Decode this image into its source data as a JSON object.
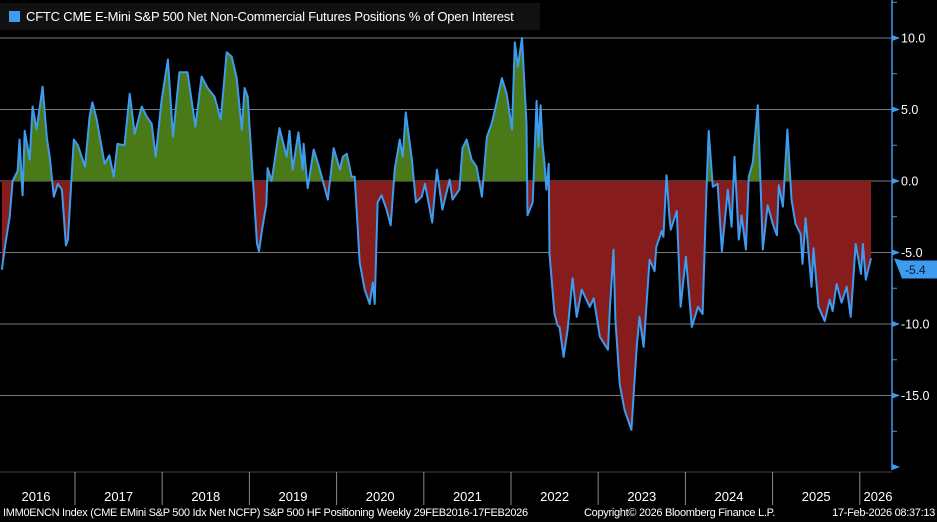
{
  "chart_data": {
    "type": "area",
    "title": "CFTC CME E-Mini S&P 500 Net Non-Commercial Futures Positions % of Open Interest",
    "series": [
      {
        "name": "CFTC CME E-Mini S&P 500 Net Non-Commercial Futures Positions % of Open Interest",
        "color": "#3d9bf0",
        "points": [
          [
            "2016-02-29",
            -6.2
          ],
          [
            "2016-03-11",
            -4.8
          ],
          [
            "2016-04-02",
            -2.5
          ],
          [
            "2016-04-14",
            0
          ],
          [
            "2016-05-05",
            0.7
          ],
          [
            "2016-05-13",
            2.9
          ],
          [
            "2016-05-26",
            -1
          ],
          [
            "2016-06-04",
            3.5
          ],
          [
            "2016-06-25",
            1.5
          ],
          [
            "2016-07-07",
            5.2
          ],
          [
            "2016-07-24",
            3.6
          ],
          [
            "2016-08-18",
            6.6
          ],
          [
            "2016-09-05",
            3.0
          ],
          [
            "2016-09-17",
            1.7
          ],
          [
            "2016-10-04",
            -1.1
          ],
          [
            "2016-10-21",
            -0.2
          ],
          [
            "2016-11-07",
            -0.6
          ],
          [
            "2016-11-24",
            -4.5
          ],
          [
            "2016-12-02",
            -4.1
          ],
          [
            "2016-12-27",
            2.9
          ],
          [
            "2017-01-13",
            2.5
          ],
          [
            "2017-02-12",
            1.0
          ],
          [
            "2017-03-03",
            4.5
          ],
          [
            "2017-03-15",
            5.5
          ],
          [
            "2017-04-02",
            4.3
          ],
          [
            "2017-05-05",
            1.2
          ],
          [
            "2017-05-25",
            1.8
          ],
          [
            "2017-06-12",
            0.3
          ],
          [
            "2017-06-28",
            2.6
          ],
          [
            "2017-07-27",
            2.5
          ],
          [
            "2017-08-18",
            6.1
          ],
          [
            "2017-09-08",
            3.3
          ],
          [
            "2017-10-07",
            5.2
          ],
          [
            "2017-10-28",
            4.5
          ],
          [
            "2017-11-18",
            4.0
          ],
          [
            "2017-12-05",
            1.7
          ],
          [
            "2017-12-29",
            5.6
          ],
          [
            "2018-01-25",
            8.5
          ],
          [
            "2018-02-15",
            3.1
          ],
          [
            "2018-03-14",
            7.6
          ],
          [
            "2018-04-17",
            7.6
          ],
          [
            "2018-05-20",
            3.8
          ],
          [
            "2018-06-15",
            7.3
          ],
          [
            "2018-07-10",
            6.5
          ],
          [
            "2018-08-08",
            5.9
          ],
          [
            "2018-09-03",
            4.3
          ],
          [
            "2018-09-28",
            9.0
          ],
          [
            "2018-10-19",
            8.7
          ],
          [
            "2018-11-09",
            7.2
          ],
          [
            "2018-11-30",
            3.6
          ],
          [
            "2018-12-12",
            6.5
          ],
          [
            "2018-12-25",
            5.9
          ],
          [
            "2019-01-16",
            0
          ],
          [
            "2019-02-02",
            -4.4
          ],
          [
            "2019-02-10",
            -4.9
          ],
          [
            "2019-02-23",
            -3.4
          ],
          [
            "2019-03-13",
            -1.6
          ],
          [
            "2019-03-18",
            0.9
          ],
          [
            "2019-04-04",
            0
          ],
          [
            "2019-05-07",
            3.7
          ],
          [
            "2019-06-06",
            1.7
          ],
          [
            "2019-06-18",
            3.5
          ],
          [
            "2019-07-01",
            0.8
          ],
          [
            "2019-07-25",
            3.4
          ],
          [
            "2019-08-12",
            0.8
          ],
          [
            "2019-08-16",
            2.6
          ],
          [
            "2019-09-02",
            -0.5
          ],
          [
            "2019-09-27",
            2.2
          ],
          [
            "2019-10-14",
            1.3
          ],
          [
            "2019-10-31",
            0.3
          ],
          [
            "2019-11-25",
            -1.3
          ],
          [
            "2019-12-20",
            2.3
          ],
          [
            "2020-01-15",
            0.8
          ],
          [
            "2020-01-27",
            1.7
          ],
          [
            "2020-02-13",
            1.9
          ],
          [
            "2020-03-04",
            0.3
          ],
          [
            "2020-03-17",
            0.3
          ],
          [
            "2020-04-07",
            -5.7
          ],
          [
            "2020-04-28",
            -7.6
          ],
          [
            "2020-05-19",
            -8.6
          ],
          [
            "2020-06-01",
            -7.1
          ],
          [
            "2020-06-09",
            -8.6
          ],
          [
            "2020-06-21",
            -1.5
          ],
          [
            "2020-07-08",
            -1.0
          ],
          [
            "2020-07-29",
            -2.0
          ],
          [
            "2020-08-15",
            -3.1
          ],
          [
            "2020-09-01",
            0.8
          ],
          [
            "2020-09-22",
            2.9
          ],
          [
            "2020-10-05",
            1.7
          ],
          [
            "2020-10-17",
            4.8
          ],
          [
            "2020-11-12",
            1.5
          ],
          [
            "2020-11-29",
            -1.5
          ],
          [
            "2020-12-23",
            -1.1
          ],
          [
            "2021-01-06",
            -0.2
          ],
          [
            "2021-02-05",
            -2.9
          ],
          [
            "2021-02-25",
            0.8
          ],
          [
            "2021-03-20",
            -2.0
          ],
          [
            "2021-04-19",
            0.1
          ],
          [
            "2021-05-01",
            -1.3
          ],
          [
            "2021-05-30",
            -0.6
          ],
          [
            "2021-06-12",
            2.3
          ],
          [
            "2021-06-29",
            2.9
          ],
          [
            "2021-07-20",
            1.5
          ],
          [
            "2021-08-10",
            1.0
          ],
          [
            "2021-09-01",
            -1.1
          ],
          [
            "2021-09-22",
            3.1
          ],
          [
            "2021-10-12",
            4.0
          ],
          [
            "2021-10-29",
            5.2
          ],
          [
            "2021-11-24",
            7.2
          ],
          [
            "2021-12-14",
            6.1
          ],
          [
            "2022-01-05",
            3.6
          ],
          [
            "2022-01-17",
            9.7
          ],
          [
            "2022-01-30",
            8.0
          ],
          [
            "2022-02-16",
            10.0
          ],
          [
            "2022-03-07",
            4.0
          ],
          [
            "2022-03-11",
            -2.4
          ],
          [
            "2022-04-02",
            -1.5
          ],
          [
            "2022-04-18",
            5.6
          ],
          [
            "2022-04-26",
            2.4
          ],
          [
            "2022-05-05",
            5.3
          ],
          [
            "2022-05-13",
            2.6
          ],
          [
            "2022-05-21",
            1.3
          ],
          [
            "2022-05-29",
            -0.6
          ],
          [
            "2022-06-08",
            1.2
          ],
          [
            "2022-06-11",
            -5.1
          ],
          [
            "2022-07-02",
            -9.3
          ],
          [
            "2022-07-15",
            -10.1
          ],
          [
            "2022-07-23",
            -10.2
          ],
          [
            "2022-08-09",
            -12.3
          ],
          [
            "2022-08-26",
            -10.4
          ],
          [
            "2022-09-16",
            -6.8
          ],
          [
            "2022-10-03",
            -9.5
          ],
          [
            "2022-10-24",
            -7.6
          ],
          [
            "2022-11-27",
            -8.8
          ],
          [
            "2022-12-13",
            -8.2
          ],
          [
            "2023-01-08",
            -10.9
          ],
          [
            "2023-02-11",
            -11.8
          ],
          [
            "2023-02-19",
            -8.9
          ],
          [
            "2023-03-06",
            -4.8
          ],
          [
            "2023-03-14",
            -9.7
          ],
          [
            "2023-04-01",
            -14.2
          ],
          [
            "2023-04-21",
            -16.0
          ],
          [
            "2023-05-20",
            -17.4
          ],
          [
            "2023-06-11",
            -11.6
          ],
          [
            "2023-06-23",
            -9.5
          ],
          [
            "2023-07-10",
            -11.6
          ],
          [
            "2023-08-04",
            -5.5
          ],
          [
            "2023-08-25",
            -6.3
          ],
          [
            "2023-09-01",
            -4.6
          ],
          [
            "2023-09-24",
            -3.5
          ],
          [
            "2023-10-01",
            -3.9
          ],
          [
            "2023-10-14",
            0.4
          ],
          [
            "2023-10-26",
            -2.5
          ],
          [
            "2023-11-01",
            -3.4
          ],
          [
            "2023-11-26",
            -2.1
          ],
          [
            "2023-12-12",
            -8.8
          ],
          [
            "2024-01-03",
            -5.3
          ],
          [
            "2024-01-28",
            -10.2
          ],
          [
            "2024-02-23",
            -8.8
          ],
          [
            "2024-03-13",
            -9.3
          ],
          [
            "2024-03-30",
            -0.4
          ],
          [
            "2024-04-08",
            3.5
          ],
          [
            "2024-04-25",
            -0.4
          ],
          [
            "2024-05-15",
            -0.2
          ],
          [
            "2024-06-02",
            -4.9
          ],
          [
            "2024-06-27",
            -0.6
          ],
          [
            "2024-07-13",
            -3.2
          ],
          [
            "2024-07-25",
            1.7
          ],
          [
            "2024-08-12",
            -4.1
          ],
          [
            "2024-08-24",
            -2.4
          ],
          [
            "2024-09-11",
            -4.8
          ],
          [
            "2024-09-23",
            0.3
          ],
          [
            "2024-10-10",
            1.3
          ],
          [
            "2024-10-31",
            5.3
          ],
          [
            "2024-11-21",
            -4.8
          ],
          [
            "2024-12-11",
            -1.7
          ],
          [
            "2025-01-02",
            -3.0
          ],
          [
            "2025-01-19",
            -3.8
          ],
          [
            "2025-01-27",
            -0.3
          ],
          [
            "2025-02-13",
            -1.8
          ],
          [
            "2025-03-04",
            3.6
          ],
          [
            "2025-03-21",
            -1.3
          ],
          [
            "2025-04-07",
            -3.0
          ],
          [
            "2025-04-28",
            -3.7
          ],
          [
            "2025-05-06",
            -5.8
          ],
          [
            "2025-05-19",
            -2.6
          ],
          [
            "2025-06-13",
            -7.4
          ],
          [
            "2025-06-21",
            -4.7
          ],
          [
            "2025-07-12",
            -8.8
          ],
          [
            "2025-08-07",
            -9.8
          ],
          [
            "2025-08-28",
            -8.3
          ],
          [
            "2025-09-09",
            -9.1
          ],
          [
            "2025-09-26",
            -7.2
          ],
          [
            "2025-10-17",
            -8.5
          ],
          [
            "2025-11-07",
            -7.4
          ],
          [
            "2025-11-24",
            -9.5
          ],
          [
            "2025-12-15",
            -4.4
          ],
          [
            "2026-01-06",
            -6.5
          ],
          [
            "2026-01-14",
            -4.4
          ],
          [
            "2026-01-26",
            -6.9
          ],
          [
            "2026-02-17",
            -5.4
          ]
        ]
      }
    ],
    "fill_positive_color": "#4a7a18",
    "fill_negative_color": "#861c1c",
    "y_ticks": [
      "10.0",
      "5.0",
      "0.0",
      "-5.0",
      "-10.0",
      "-15.0"
    ],
    "y_tick_values": [
      10,
      5,
      0,
      -5,
      -10,
      -15
    ],
    "ylim": [
      -20,
      12.7
    ],
    "y_axis_side": "right",
    "x_tick_labels": [
      "2016",
      "2017",
      "2018",
      "2019",
      "2020",
      "2021",
      "2022",
      "2023",
      "2024",
      "2025",
      "2026"
    ],
    "xlim": [
      "2016-02-29",
      "2026-03-15"
    ],
    "grid": "horizontal",
    "legend_placement": "top-left",
    "last_value_label": "-5.4",
    "last_value_color": "#3d9bf0"
  },
  "footer": {
    "description": "IMM0ENCN Index (CME EMini S&P 500 Idx Net NCFP) S&P 500 HF Positioning Weekly 29FEB2016-17FEB2026",
    "copyright": "Copyright© 2026 Bloomberg Finance L.P.",
    "timestamp": "17-Feb-2026 08:37:13"
  }
}
